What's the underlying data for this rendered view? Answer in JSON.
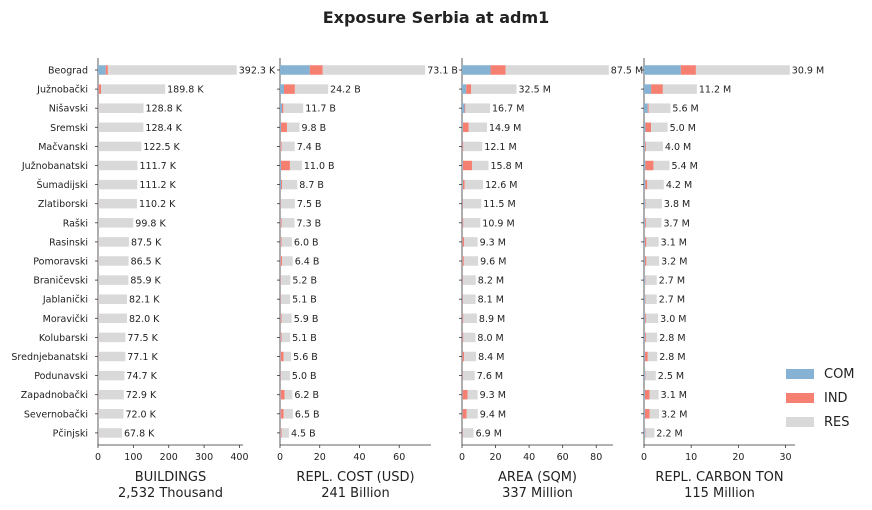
{
  "title": "Exposure Serbia at adm1",
  "colors": {
    "COM": "#86b2d3",
    "IND": "#f57f70",
    "RES": "#d9d9d9"
  },
  "legend": [
    "COM",
    "IND",
    "RES"
  ],
  "chart_data": {
    "type": "bar",
    "orientation": "horizontal-stacked",
    "title": "Exposure Serbia at adm1",
    "categories": [
      "Beograd",
      "Južnobački",
      "Nišavski",
      "Sremski",
      "Mačvanski",
      "Južnobanatski",
      "Šumadijski",
      "Zlatiborski",
      "Raški",
      "Rasinski",
      "Pomoravski",
      "Braničevski",
      "Jablanički",
      "Moravički",
      "Kolubarski",
      "Srednjebanatski",
      "Podunavski",
      "Zapadnobački",
      "Severnobački",
      "Pčinjski"
    ],
    "panels": [
      {
        "xlabel": "BUILDINGS",
        "subtitle": "2,532 Thousand",
        "xlim": [
          0,
          410
        ],
        "xticks": [
          0,
          100,
          200,
          300,
          400
        ],
        "labels": [
          "392.3 K",
          "189.8 K",
          "128.8 K",
          "128.4 K",
          "122.5 K",
          "111.7 K",
          "111.2 K",
          "110.2 K",
          "99.8 K",
          "87.5 K",
          "86.5 K",
          "85.9 K",
          "82.1 K",
          "82.0 K",
          "77.5 K",
          "77.1 K",
          "74.7 K",
          "72.9 K",
          "72.0 K",
          "67.8 K"
        ],
        "series": [
          {
            "name": "COM",
            "values": [
              22,
              1.5,
              1,
              1,
              1,
              1,
              1,
              1,
              1,
              0.8,
              0.8,
              0.8,
              0.8,
              0.8,
              0.8,
              0.8,
              0.8,
              0.8,
              0.8,
              0.8
            ]
          },
          {
            "name": "IND",
            "values": [
              6,
              7,
              0.7,
              0.7,
              0.7,
              0.7,
              0.7,
              0.7,
              0.7,
              0.5,
              0.5,
              0.5,
              0.5,
              0.5,
              0.5,
              0.5,
              0.5,
              0.5,
              0.5,
              0.5
            ]
          },
          {
            "name": "RES",
            "values": [
              364.3,
              181.3,
              127.1,
              126.7,
              120.8,
              110,
              109.5,
              108.5,
              98.1,
              86.2,
              85.2,
              84.6,
              80.8,
              80.7,
              76.2,
              75.8,
              73.4,
              71.6,
              70.7,
              66.5
            ]
          }
        ]
      },
      {
        "xlabel": "REPL. COST (USD)",
        "subtitle": "241 Billion",
        "xlim": [
          0,
          76
        ],
        "xticks": [
          0,
          20,
          40,
          60
        ],
        "labels": [
          "73.1 B",
          "24.2 B",
          "11.7 B",
          "9.8 B",
          "7.4 B",
          "11.0 B",
          "8.7 B",
          "7.5 B",
          "7.3 B",
          "6.0 B",
          "6.4 B",
          "5.2 B",
          "5.1 B",
          "5.9 B",
          "5.1 B",
          "5.6 B",
          "5.0 B",
          "6.2 B",
          "6.5 B",
          "4.5 B"
        ],
        "series": [
          {
            "name": "COM",
            "values": [
              15,
              2,
              1,
              0.5,
              0.3,
              0.5,
              0.5,
              0.3,
              0.3,
              0.3,
              0.3,
              0.3,
              0.3,
              0.3,
              0.3,
              0.3,
              0.3,
              0.3,
              0.3,
              0.3
            ]
          },
          {
            "name": "IND",
            "values": [
              6.5,
              5.5,
              0.7,
              3,
              0.5,
              4.5,
              0.5,
              0.3,
              0.5,
              0.5,
              0.8,
              0.3,
              0.3,
              0.5,
              0.5,
              1.5,
              0.3,
              2,
              1.5,
              0.5
            ]
          },
          {
            "name": "RES",
            "values": [
              51.6,
              16.7,
              10,
              6.3,
              6.6,
              6,
              7.7,
              6.9,
              6.5,
              5.2,
              5.3,
              4.6,
              4.5,
              5.1,
              4.3,
              3.8,
              4.4,
              3.9,
              4.7,
              3.7
            ]
          }
        ]
      },
      {
        "xlabel": "AREA (SQM)",
        "subtitle": "337 Million",
        "xlim": [
          0,
          90
        ],
        "xticks": [
          0,
          20,
          40,
          60,
          80
        ],
        "labels": [
          "87.5 M",
          "32.5 M",
          "16.7 M",
          "14.9 M",
          "12.1 M",
          "15.8 M",
          "12.6 M",
          "11.5 M",
          "10.9 M",
          "9.3 M",
          "9.6 M",
          "8.2 M",
          "8.1 M",
          "8.9 M",
          "8.0 M",
          "8.4 M",
          "7.6 M",
          "9.3 M",
          "9.4 M",
          "6.9 M"
        ],
        "series": [
          {
            "name": "COM",
            "values": [
              17,
              2.5,
              1.5,
              0.5,
              0.3,
              0.5,
              0.5,
              0.3,
              0.3,
              0.3,
              0.3,
              0.3,
              0.3,
              0.3,
              0.3,
              0.3,
              0.3,
              0.3,
              0.3,
              0.3
            ]
          },
          {
            "name": "IND",
            "values": [
              9,
              3,
              0.5,
              3.5,
              0.5,
              5.5,
              1,
              0.3,
              0.5,
              1,
              0.8,
              0.3,
              0.3,
              0.5,
              0.5,
              1,
              0.3,
              3,
              2.5,
              0.3
            ]
          },
          {
            "name": "RES",
            "values": [
              61.5,
              27,
              14.7,
              10.9,
              11.3,
              9.8,
              11.1,
              10.9,
              10.1,
              8,
              8.5,
              7.6,
              7.5,
              8.1,
              7.2,
              7.1,
              7,
              6,
              6.6,
              6.3
            ]
          }
        ]
      },
      {
        "xlabel": "REPL. CARBON TON",
        "subtitle": "115 Million",
        "xlim": [
          0,
          32
        ],
        "xticks": [
          0,
          10,
          20,
          30
        ],
        "labels": [
          "30.9 M",
          "11.2 M",
          "5.6 M",
          "5.0 M",
          "4.0 M",
          "5.4 M",
          "4.2 M",
          "3.8 M",
          "3.7 M",
          "3.1 M",
          "3.2 M",
          "2.7 M",
          "2.7 M",
          "3.0 M",
          "2.8 M",
          "2.8 M",
          "2.5 M",
          "3.1 M",
          "3.2 M",
          "2.2 M"
        ],
        "series": [
          {
            "name": "COM",
            "values": [
              7.8,
              1.5,
              0.8,
              0.3,
              0.2,
              0.3,
              0.3,
              0.2,
              0.2,
              0.2,
              0.2,
              0.2,
              0.2,
              0.2,
              0.2,
              0.2,
              0.2,
              0.2,
              0.2,
              0.2
            ]
          },
          {
            "name": "IND",
            "values": [
              3.2,
              2.5,
              0.2,
              1.2,
              0.2,
              1.7,
              0.4,
              0.1,
              0.2,
              0.3,
              0.3,
              0.1,
              0.1,
              0.2,
              0.2,
              0.6,
              0.1,
              1,
              1,
              0.1
            ]
          },
          {
            "name": "RES",
            "values": [
              19.9,
              7.2,
              4.6,
              3.5,
              3.6,
              3.4,
              3.5,
              3.5,
              3.3,
              2.6,
              2.7,
              2.4,
              2.4,
              2.6,
              2.4,
              2,
              2.2,
              1.9,
              2,
              1.9
            ]
          }
        ]
      }
    ]
  }
}
